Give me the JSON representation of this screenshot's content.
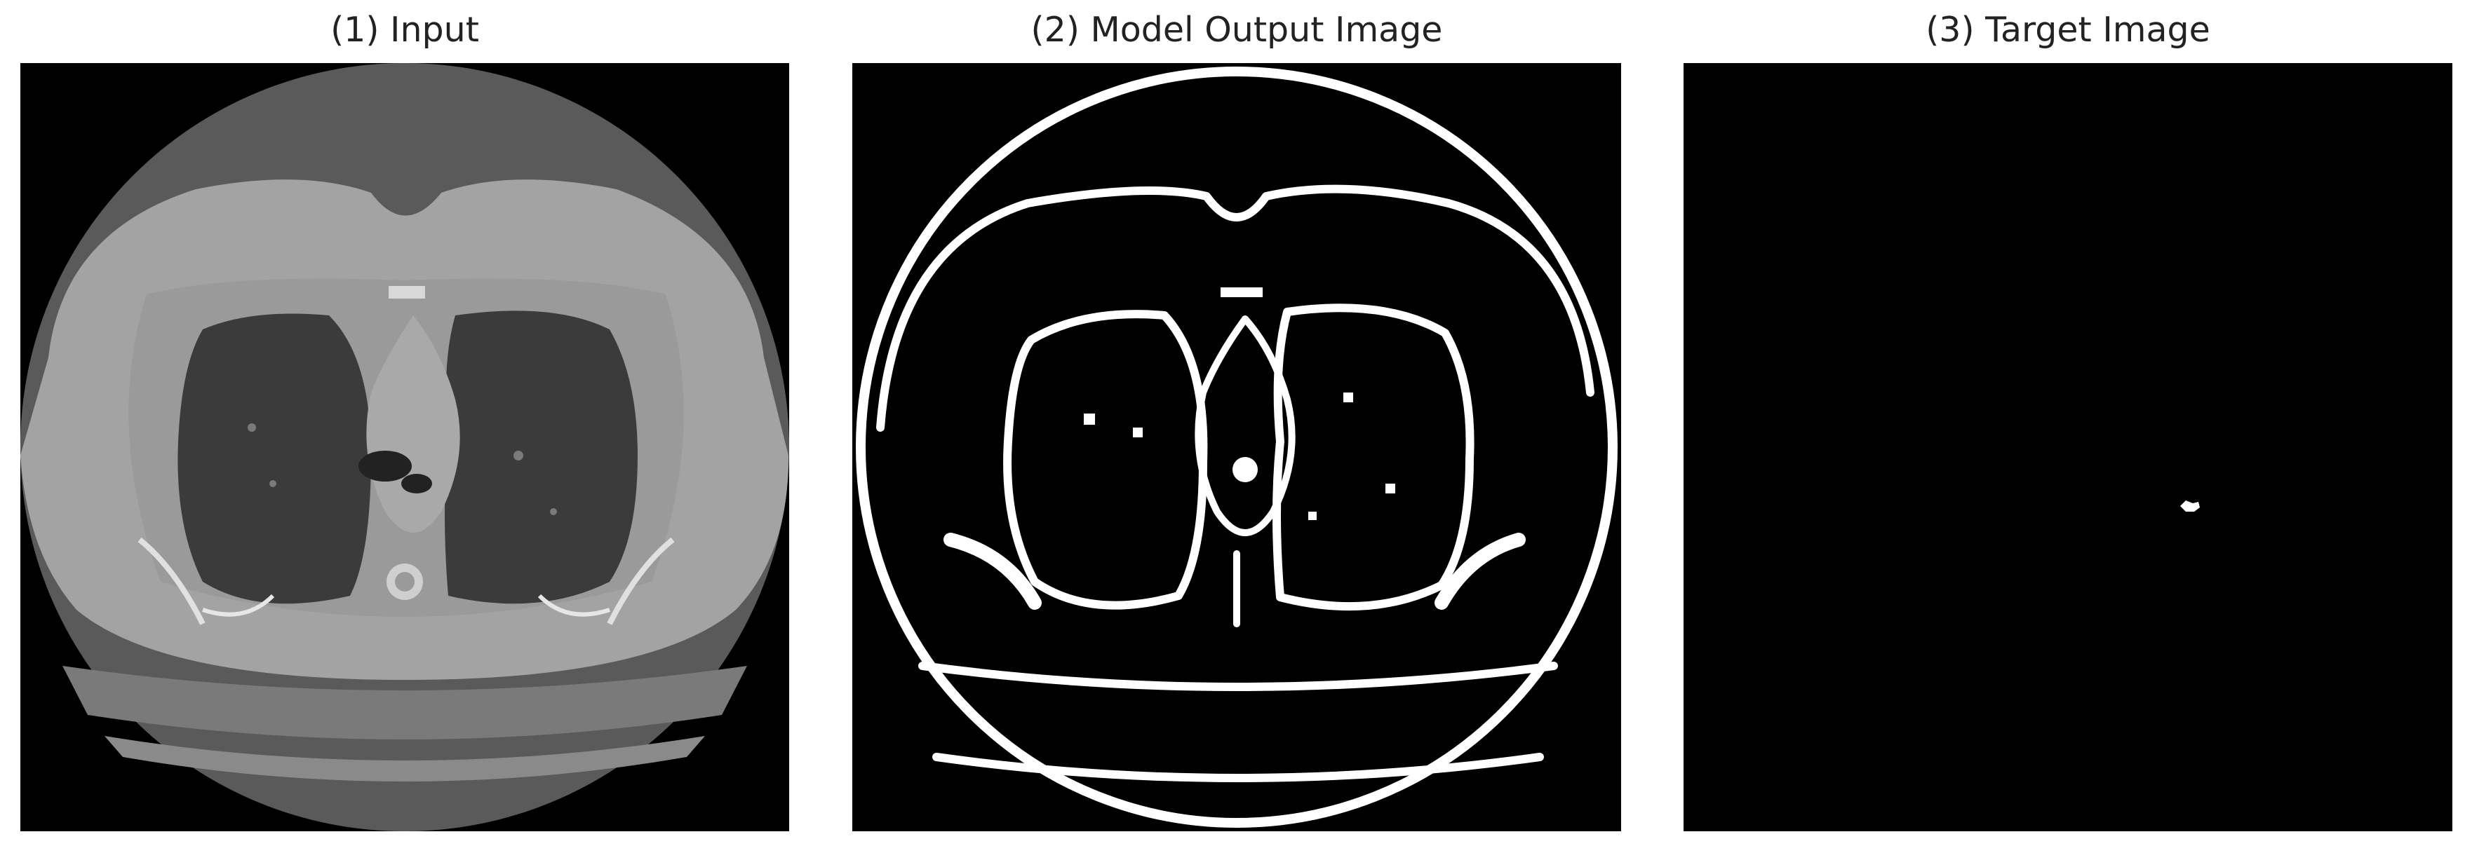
{
  "panels": [
    {
      "title": "(1) Input"
    },
    {
      "title": "(2) Model Output Image"
    },
    {
      "title": "(3) Target Image"
    }
  ],
  "colors": {
    "background": "#ffffff",
    "image_background": "#000000",
    "mask": "#ffffff",
    "ct_body": "#a6a6a6",
    "ct_outer_ring": "#555555",
    "ct_lung": "#3a3a3a"
  }
}
